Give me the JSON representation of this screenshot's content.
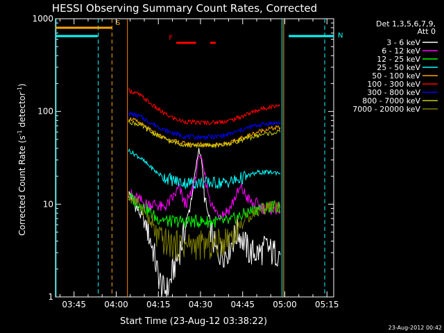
{
  "chart_data": {
    "type": "line",
    "title": "HESSI Observing Summary Count Rates, Corrected",
    "xlabel": "Start Time (23-Aug-12 03:38:22)",
    "ylabel": "Corrected Count Rate (s⁻¹ detector⁻¹)",
    "y_scale": "log",
    "ylim": [
      1,
      1000
    ],
    "x_unit": "minutes after 03:38:22",
    "xlim": [
      0,
      99
    ],
    "x_ticks": [
      {
        "label": "03:45",
        "x": 6.6
      },
      {
        "label": "04:00",
        "x": 21.6
      },
      {
        "label": "04:15",
        "x": 36.6
      },
      {
        "label": "04:30",
        "x": 51.6
      },
      {
        "label": "04:45",
        "x": 66.6
      },
      {
        "label": "05:00",
        "x": 81.6
      },
      {
        "label": "05:15",
        "x": 96.6
      }
    ],
    "y_ticks": [
      {
        "label": "1",
        "y": 1
      },
      {
        "label": "10",
        "y": 10
      },
      {
        "label": "100",
        "y": 100
      },
      {
        "label": "1000",
        "y": 1000
      }
    ],
    "legend": {
      "placement": "top-right",
      "header": [
        "Det 1,3,5,6,7,9,",
        "Att 0"
      ]
    },
    "series": [
      {
        "name": "3 - 6 keV",
        "color": "#ffffff",
        "points": [
          [
            26,
            13
          ],
          [
            27,
            12
          ],
          [
            29,
            9
          ],
          [
            31,
            7
          ],
          [
            33,
            5
          ],
          [
            35,
            3
          ],
          [
            36,
            2
          ],
          [
            38,
            1.2
          ],
          [
            40,
            1.2
          ],
          [
            42,
            2
          ],
          [
            44,
            3
          ],
          [
            46,
            5
          ],
          [
            48,
            10
          ],
          [
            50,
            25
          ],
          [
            51,
            40
          ],
          [
            52,
            30
          ],
          [
            53,
            12
          ],
          [
            55,
            6
          ],
          [
            57,
            3
          ],
          [
            59,
            3
          ],
          [
            61,
            3
          ],
          [
            63,
            4
          ],
          [
            65,
            5
          ],
          [
            67,
            4
          ],
          [
            69,
            3
          ],
          [
            71,
            3
          ],
          [
            73,
            3
          ],
          [
            75,
            3.5
          ],
          [
            77,
            3
          ],
          [
            79,
            3
          ],
          [
            80,
            3
          ]
        ]
      },
      {
        "name": "6 - 12 keV",
        "color": "#ff00ff",
        "points": [
          [
            26,
            13
          ],
          [
            28,
            12
          ],
          [
            30,
            11
          ],
          [
            32,
            10
          ],
          [
            34,
            10
          ],
          [
            36,
            10
          ],
          [
            38,
            9
          ],
          [
            40,
            10
          ],
          [
            42,
            12
          ],
          [
            44,
            15
          ],
          [
            46,
            10
          ],
          [
            48,
            12
          ],
          [
            50,
            20
          ],
          [
            51,
            35
          ],
          [
            52,
            30
          ],
          [
            54,
            15
          ],
          [
            56,
            9
          ],
          [
            58,
            8
          ],
          [
            60,
            8
          ],
          [
            62,
            9
          ],
          [
            64,
            12
          ],
          [
            66,
            15
          ],
          [
            68,
            12
          ],
          [
            70,
            10
          ],
          [
            72,
            10
          ],
          [
            74,
            9
          ],
          [
            76,
            9
          ],
          [
            78,
            9
          ],
          [
            80,
            9
          ]
        ]
      },
      {
        "name": "12 - 25 keV",
        "color": "#00ff00",
        "points": [
          [
            26,
            12
          ],
          [
            28,
            11
          ],
          [
            30,
            10
          ],
          [
            32,
            9
          ],
          [
            34,
            8
          ],
          [
            36,
            7
          ],
          [
            38,
            7
          ],
          [
            40,
            6.5
          ],
          [
            42,
            6.5
          ],
          [
            44,
            6.5
          ],
          [
            46,
            6.5
          ],
          [
            48,
            6.5
          ],
          [
            50,
            6.5
          ],
          [
            52,
            6.5
          ],
          [
            54,
            6.5
          ],
          [
            56,
            6.5
          ],
          [
            58,
            6.5
          ],
          [
            60,
            6.5
          ],
          [
            62,
            6.5
          ],
          [
            64,
            7
          ],
          [
            66,
            7.5
          ],
          [
            68,
            8
          ],
          [
            70,
            8.5
          ],
          [
            72,
            9
          ],
          [
            74,
            9
          ],
          [
            76,
            9.5
          ],
          [
            78,
            9.5
          ],
          [
            80,
            9.5
          ]
        ]
      },
      {
        "name": "25 - 50 keV",
        "color": "#00ffff",
        "points": [
          [
            26,
            38
          ],
          [
            28,
            35
          ],
          [
            30,
            32
          ],
          [
            32,
            28
          ],
          [
            34,
            25
          ],
          [
            36,
            22
          ],
          [
            38,
            20
          ],
          [
            40,
            19
          ],
          [
            42,
            18
          ],
          [
            44,
            17.5
          ],
          [
            46,
            17
          ],
          [
            48,
            17
          ],
          [
            50,
            17
          ],
          [
            52,
            17
          ],
          [
            54,
            17
          ],
          [
            56,
            17
          ],
          [
            58,
            17
          ],
          [
            60,
            17
          ],
          [
            62,
            17.5
          ],
          [
            64,
            18
          ],
          [
            66,
            19
          ],
          [
            68,
            20
          ],
          [
            70,
            21
          ],
          [
            72,
            22
          ],
          [
            74,
            22
          ],
          [
            76,
            22
          ],
          [
            78,
            22
          ],
          [
            80,
            22
          ]
        ]
      },
      {
        "name": "50 - 100 keV",
        "color": "#ffa500",
        "points": [
          [
            26,
            85
          ],
          [
            28,
            80
          ],
          [
            30,
            75
          ],
          [
            32,
            68
          ],
          [
            34,
            62
          ],
          [
            36,
            57
          ],
          [
            38,
            53
          ],
          [
            40,
            50
          ],
          [
            42,
            48
          ],
          [
            44,
            46
          ],
          [
            46,
            45
          ],
          [
            48,
            44
          ],
          [
            50,
            44
          ],
          [
            52,
            44
          ],
          [
            54,
            44
          ],
          [
            56,
            44
          ],
          [
            58,
            44
          ],
          [
            60,
            45
          ],
          [
            62,
            46
          ],
          [
            64,
            48
          ],
          [
            66,
            51
          ],
          [
            68,
            54
          ],
          [
            70,
            57
          ],
          [
            72,
            60
          ],
          [
            74,
            63
          ],
          [
            76,
            65
          ],
          [
            78,
            66
          ],
          [
            80,
            67
          ]
        ]
      },
      {
        "name": "100 - 300 keV",
        "color": "#ff0000",
        "points": [
          [
            26,
            170
          ],
          [
            28,
            160
          ],
          [
            30,
            150
          ],
          [
            32,
            135
          ],
          [
            34,
            120
          ],
          [
            36,
            108
          ],
          [
            38,
            98
          ],
          [
            40,
            90
          ],
          [
            42,
            85
          ],
          [
            44,
            80
          ],
          [
            46,
            78
          ],
          [
            48,
            77
          ],
          [
            50,
            76
          ],
          [
            52,
            76
          ],
          [
            54,
            76
          ],
          [
            56,
            76
          ],
          [
            58,
            77
          ],
          [
            60,
            78
          ],
          [
            62,
            80
          ],
          [
            64,
            83
          ],
          [
            66,
            88
          ],
          [
            68,
            93
          ],
          [
            70,
            98
          ],
          [
            72,
            103
          ],
          [
            74,
            108
          ],
          [
            76,
            112
          ],
          [
            78,
            115
          ],
          [
            80,
            117
          ]
        ]
      },
      {
        "name": "300 - 800 keV",
        "color": "#0000ff",
        "points": [
          [
            26,
            95
          ],
          [
            28,
            92
          ],
          [
            30,
            88
          ],
          [
            32,
            82
          ],
          [
            34,
            75
          ],
          [
            36,
            70
          ],
          [
            38,
            65
          ],
          [
            40,
            61
          ],
          [
            42,
            58
          ],
          [
            44,
            56
          ],
          [
            46,
            54
          ],
          [
            48,
            53
          ],
          [
            50,
            53
          ],
          [
            52,
            53
          ],
          [
            54,
            53
          ],
          [
            56,
            53
          ],
          [
            58,
            54
          ],
          [
            60,
            55
          ],
          [
            62,
            57
          ],
          [
            64,
            60
          ],
          [
            66,
            63
          ],
          [
            68,
            66
          ],
          [
            70,
            69
          ],
          [
            72,
            71
          ],
          [
            74,
            73
          ],
          [
            76,
            74
          ],
          [
            78,
            75
          ],
          [
            80,
            75
          ]
        ]
      },
      {
        "name": "800 - 7000 keV",
        "color": "#cccc00",
        "points": [
          [
            26,
            78
          ],
          [
            28,
            75
          ],
          [
            30,
            72
          ],
          [
            32,
            66
          ],
          [
            34,
            60
          ],
          [
            36,
            56
          ],
          [
            38,
            52
          ],
          [
            40,
            49
          ],
          [
            42,
            47
          ],
          [
            44,
            45
          ],
          [
            46,
            44
          ],
          [
            48,
            43
          ],
          [
            50,
            43
          ],
          [
            52,
            43
          ],
          [
            54,
            43
          ],
          [
            56,
            43
          ],
          [
            58,
            43
          ],
          [
            60,
            44
          ],
          [
            62,
            45
          ],
          [
            64,
            47
          ],
          [
            66,
            49
          ],
          [
            68,
            51
          ],
          [
            70,
            53
          ],
          [
            72,
            55
          ],
          [
            74,
            57
          ],
          [
            76,
            58
          ],
          [
            78,
            59
          ],
          [
            80,
            60
          ]
        ]
      },
      {
        "name": "7000 - 20000 keV",
        "color": "#808000",
        "points": [
          [
            26,
            12
          ],
          [
            28,
            11
          ],
          [
            30,
            10
          ],
          [
            32,
            8
          ],
          [
            34,
            6
          ],
          [
            36,
            4.5
          ],
          [
            38,
            4
          ],
          [
            40,
            3.8
          ],
          [
            42,
            3.6
          ],
          [
            44,
            3.6
          ],
          [
            46,
            3.6
          ],
          [
            48,
            3.6
          ],
          [
            50,
            3.6
          ],
          [
            52,
            3.6
          ],
          [
            54,
            3.6
          ],
          [
            56,
            3.6
          ],
          [
            58,
            3.8
          ],
          [
            60,
            4
          ],
          [
            62,
            4.5
          ],
          [
            64,
            5
          ],
          [
            66,
            6
          ],
          [
            68,
            7
          ],
          [
            70,
            8
          ],
          [
            72,
            8.5
          ],
          [
            74,
            9
          ],
          [
            76,
            9.5
          ],
          [
            78,
            9.5
          ],
          [
            80,
            9.5
          ]
        ]
      }
    ],
    "flags": [
      {
        "label": "N",
        "color": "#00ffff",
        "line_y": 650,
        "label_y": 650,
        "segments": [
          [
            0,
            15
          ],
          [
            83,
            99
          ]
        ]
      },
      {
        "label": "S",
        "color": "#ffa500",
        "line_y": 800,
        "label_y": 800,
        "segments": [
          [
            0,
            20
          ]
        ]
      },
      {
        "label": "F",
        "color": "#ff0000",
        "line_y": 550,
        "label_y": 550,
        "segments": [
          [
            43,
            50
          ],
          [
            55,
            57
          ]
        ]
      }
    ],
    "vertical_markers": [
      {
        "x": 0.2,
        "color": "#00ffff",
        "style": "solid"
      },
      {
        "x": 15.2,
        "color": "#00ffff",
        "style": "dashed"
      },
      {
        "x": 20.1,
        "color": "#ffa500",
        "style": "dashed"
      },
      {
        "x": 25.6,
        "color": "#ff8800",
        "style": "solid"
      },
      {
        "x": 80.6,
        "color": "#00ffff",
        "style": "solid"
      },
      {
        "x": 81.2,
        "color": "#ffa500",
        "style": "solid"
      },
      {
        "x": 95.8,
        "color": "#00ffff",
        "style": "dashed"
      }
    ]
  },
  "footer": {
    "timestamp": "23-Aug-2012 00:42"
  }
}
